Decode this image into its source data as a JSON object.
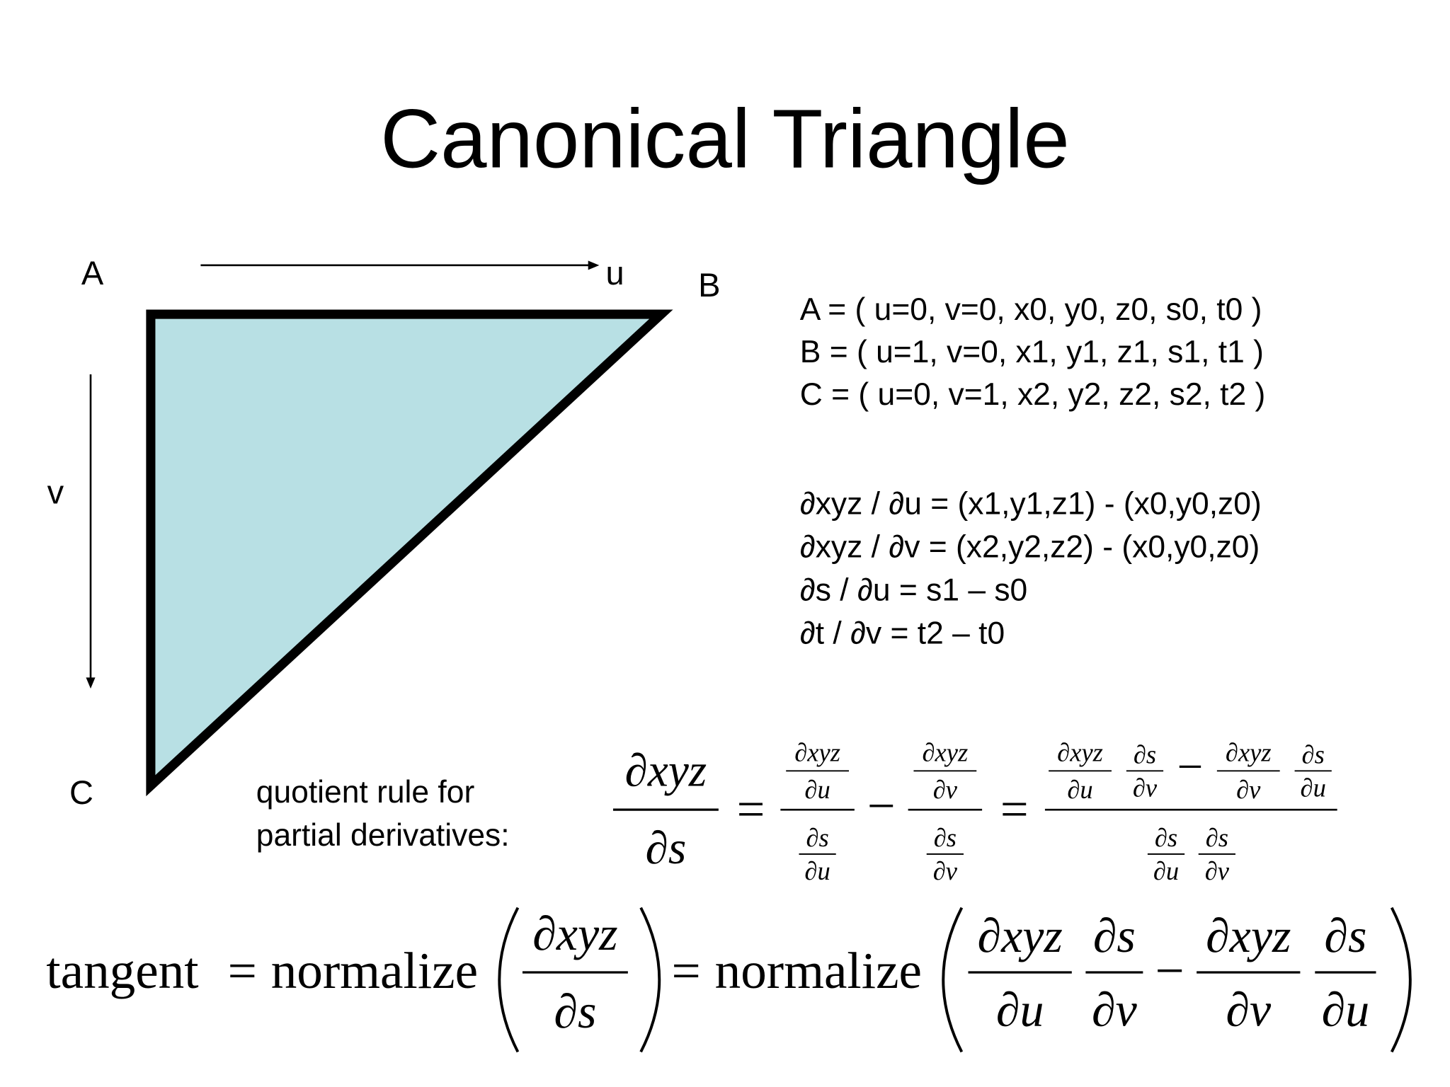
{
  "title": "Canonical Triangle",
  "diagram": {
    "vertices": [
      "A",
      "B",
      "C"
    ],
    "axes": [
      "u",
      "v"
    ]
  },
  "coordinates": [
    "A = ( u=0, v=0, x0, y0, z0, s0, t0 )",
    "B = ( u=1, v=0, x1, y1, z1, s1, t1 )",
    "C = ( u=0, v=1, x2, y2, z2, s2, t2 )"
  ],
  "derivatives": [
    "∂xyz / ∂u = (x1,y1,z1) - (x0,y0,z0)",
    "∂xyz / ∂v = (x2,y2,z2) - (x0,y0,z0)",
    "∂s / ∂u = s1 – s0",
    "∂t / ∂v = t2 – t0"
  ],
  "quotient_rule": [
    "quotient rule for",
    "partial derivatives:"
  ],
  "math": {
    "partial_xyz": "∂xyz",
    "partial_s": "∂s",
    "partial_u": "∂u",
    "partial_v": "∂v",
    "equals": "=",
    "minus": "−",
    "tangent": "tangent",
    "normalize": "normalize"
  }
}
